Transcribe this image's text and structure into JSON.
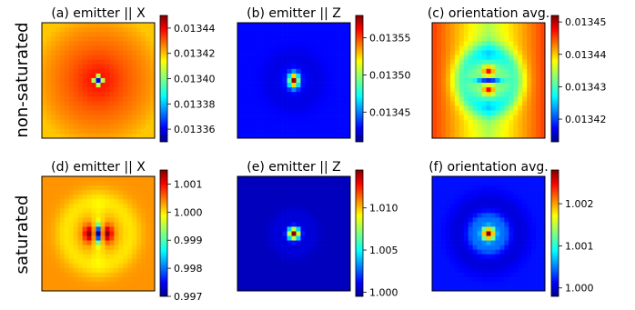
{
  "row_labels": [
    "non-saturated",
    "saturated"
  ],
  "chart_data": [
    {
      "type": "heatmap",
      "title": "(a) emitter || X",
      "colormap": "jet",
      "pattern": "dipole_dip_point",
      "clim": [
        0.01335,
        0.01345
      ],
      "colorbar_ticks": [
        "0.01336",
        "0.01338",
        "0.01340",
        "0.01342",
        "0.01344"
      ],
      "colorbar_tick_values": [
        0.01336,
        0.01338,
        0.0134,
        0.01342,
        0.01344
      ]
    },
    {
      "type": "heatmap",
      "title": "(b) emitter || Z",
      "colormap": "jet",
      "pattern": "peak",
      "clim": [
        0.01341,
        0.01358
      ],
      "colorbar_ticks": [
        "0.01345",
        "0.01350",
        "0.01355"
      ],
      "colorbar_tick_values": [
        0.01345,
        0.0135,
        0.01355
      ]
    },
    {
      "type": "heatmap",
      "title": "(c) orientation avg.",
      "colormap": "jet",
      "pattern": "double_lobe",
      "clim": [
        0.013413,
        0.013452
      ],
      "colorbar_ticks": [
        "0.01342",
        "0.01343",
        "0.01344",
        "0.01345"
      ],
      "colorbar_tick_values": [
        0.01342,
        0.01343,
        0.01344,
        0.01345
      ]
    },
    {
      "type": "heatmap",
      "title": "(d) emitter || X",
      "colormap": "jet",
      "pattern": "saturated_x",
      "clim": [
        0.997,
        1.0015
      ],
      "colorbar_ticks": [
        "0.997",
        "0.998",
        "0.999",
        "1.000",
        "1.001"
      ],
      "colorbar_tick_values": [
        0.997,
        0.998,
        0.999,
        1.0,
        1.001
      ]
    },
    {
      "type": "heatmap",
      "title": "(e) emitter || Z",
      "colormap": "jet",
      "pattern": "sat_peak",
      "clim": [
        0.9995,
        1.0145
      ],
      "colorbar_ticks": [
        "1.000",
        "1.005",
        "1.010"
      ],
      "colorbar_tick_values": [
        1.0,
        1.005,
        1.01
      ]
    },
    {
      "type": "heatmap",
      "title": "(f) orientation avg.",
      "colormap": "jet",
      "pattern": "sat_avg",
      "clim": [
        0.9998,
        1.0028
      ],
      "colorbar_ticks": [
        "1.000",
        "1.001",
        "1.002"
      ],
      "colorbar_tick_values": [
        1.0,
        1.001,
        1.002
      ]
    }
  ]
}
